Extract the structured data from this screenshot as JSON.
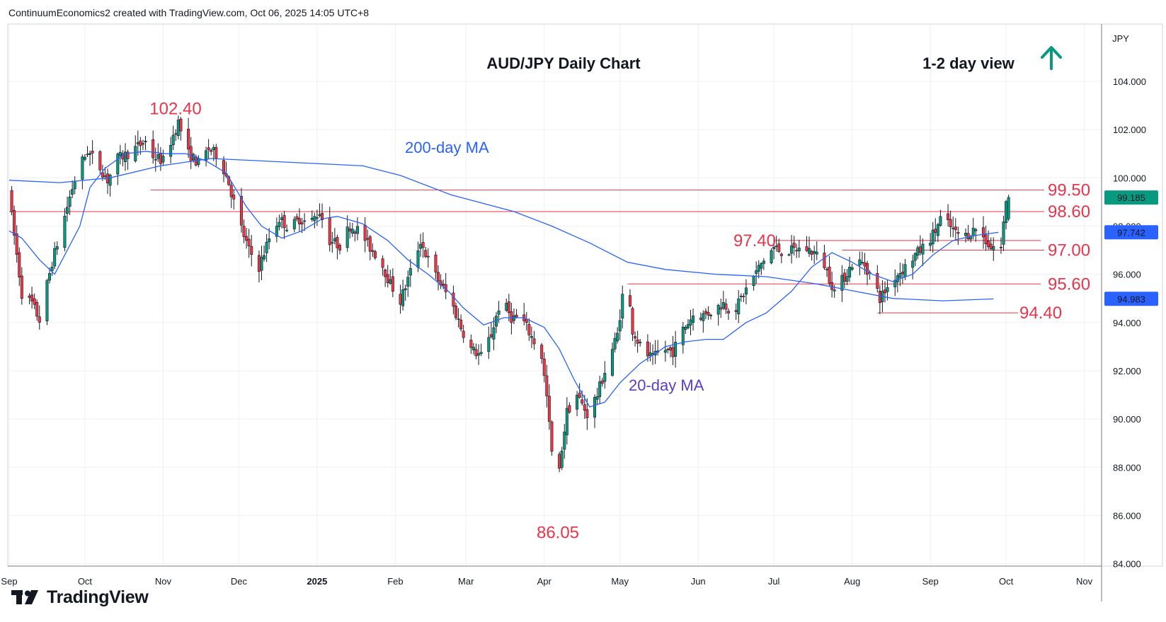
{
  "header": {
    "credit": "ContinuumEconomics2 created with TradingView.com, Oct 06, 2025 14:05 UTC+8"
  },
  "brand": {
    "name": "TradingView"
  },
  "chart_data": {
    "type": "candlestick",
    "title": "AUD/JPY Daily Chart",
    "view_label": "1-2 day view",
    "view_direction": "up",
    "currency": "JPY",
    "y_ticks": [
      "104.000",
      "102.000",
      "100.000",
      "98.000",
      "96.000",
      "94.000",
      "92.000",
      "90.000",
      "88.000",
      "86.000",
      "84.000"
    ],
    "y_tick_values": [
      104,
      102,
      100,
      98,
      96,
      94,
      92,
      90,
      88,
      86,
      84
    ],
    "ylim": [
      83.9,
      106.2
    ],
    "x_ticks": [
      "Sep",
      "Oct",
      "Nov",
      "Dec",
      "2025",
      "Feb",
      "Mar",
      "Apr",
      "May",
      "Jun",
      "Jul",
      "Aug",
      "Sep",
      "Oct",
      "Nov"
    ],
    "x_tick_days": [
      0,
      30,
      61,
      91,
      122,
      153,
      181,
      212,
      242,
      273,
      303,
      334,
      365,
      395,
      426
    ],
    "x_range_days": [
      0,
      432
    ],
    "x_origin": "2024-09-01",
    "price_badges": [
      {
        "value": 99.185,
        "label": "99.185",
        "color": "#089981"
      },
      {
        "value": 97.742,
        "label": "97.742",
        "color": "#2962ff"
      },
      {
        "value": 94.983,
        "label": "94.983",
        "color": "#2962ff"
      }
    ],
    "levels": [
      {
        "label": "102.40",
        "value": 102.4,
        "line": false
      },
      {
        "label": "99.50",
        "value": 99.5,
        "line": true,
        "from_day": 56
      },
      {
        "label": "98.60",
        "value": 98.6,
        "line": true,
        "from_day": 0
      },
      {
        "label": "97.40",
        "value": 97.4,
        "line": true,
        "from_day": 303
      },
      {
        "label": "97.00",
        "value": 97.0,
        "line": true,
        "from_day": 330
      },
      {
        "label": "95.60",
        "value": 95.6,
        "line": true,
        "from_day": 245
      },
      {
        "label": "94.40",
        "value": 94.4,
        "line": true,
        "from_day": 344
      },
      {
        "label": "86.05",
        "value": 86.05,
        "line": false
      }
    ],
    "annotations": [
      {
        "text": "200-day MA",
        "color": "#2962ff"
      },
      {
        "text": "20-day MA",
        "color": "#5b3ec8"
      }
    ],
    "series": [
      {
        "name": "200-day MA",
        "color": "#2962ff",
        "points": [
          [
            0,
            99.9
          ],
          [
            20,
            99.8
          ],
          [
            40,
            100.0
          ],
          [
            60,
            100.5
          ],
          [
            80,
            100.8
          ],
          [
            100,
            100.7
          ],
          [
            120,
            100.6
          ],
          [
            140,
            100.5
          ],
          [
            155,
            100.1
          ],
          [
            175,
            99.3
          ],
          [
            200,
            98.6
          ],
          [
            215,
            98.0
          ],
          [
            230,
            97.3
          ],
          [
            245,
            96.5
          ],
          [
            260,
            96.2
          ],
          [
            280,
            96.0
          ],
          [
            300,
            95.9
          ],
          [
            320,
            95.6
          ],
          [
            335,
            95.3
          ],
          [
            350,
            95.0
          ],
          [
            370,
            94.9
          ],
          [
            390,
            94.98
          ]
        ]
      },
      {
        "name": "20-day MA",
        "color": "#2962ff",
        "points": [
          [
            0,
            97.8
          ],
          [
            5,
            97.5
          ],
          [
            12,
            96.6
          ],
          [
            18,
            96.0
          ],
          [
            22,
            96.8
          ],
          [
            28,
            98.0
          ],
          [
            32,
            99.6
          ],
          [
            38,
            100.4
          ],
          [
            46,
            101.0
          ],
          [
            54,
            101.1
          ],
          [
            62,
            101.0
          ],
          [
            70,
            101.0
          ],
          [
            78,
            100.7
          ],
          [
            86,
            100.2
          ],
          [
            94,
            98.8
          ],
          [
            100,
            98.0
          ],
          [
            108,
            97.5
          ],
          [
            116,
            97.8
          ],
          [
            124,
            98.3
          ],
          [
            130,
            98.4
          ],
          [
            140,
            98.1
          ],
          [
            150,
            97.4
          ],
          [
            158,
            96.6
          ],
          [
            166,
            96.0
          ],
          [
            174,
            95.3
          ],
          [
            180,
            94.6
          ],
          [
            188,
            93.9
          ],
          [
            196,
            94.2
          ],
          [
            204,
            94.2
          ],
          [
            212,
            93.8
          ],
          [
            218,
            92.9
          ],
          [
            224,
            91.6
          ],
          [
            230,
            90.5
          ],
          [
            236,
            90.7
          ],
          [
            242,
            91.5
          ],
          [
            250,
            92.3
          ],
          [
            260,
            93.0
          ],
          [
            268,
            93.2
          ],
          [
            276,
            93.3
          ],
          [
            283,
            93.3
          ],
          [
            292,
            94.0
          ],
          [
            300,
            94.4
          ],
          [
            310,
            95.3
          ],
          [
            318,
            96.3
          ],
          [
            326,
            96.9
          ],
          [
            334,
            96.5
          ],
          [
            342,
            96.0
          ],
          [
            350,
            95.7
          ],
          [
            358,
            96.0
          ],
          [
            366,
            96.8
          ],
          [
            374,
            97.4
          ],
          [
            382,
            97.6
          ],
          [
            392,
            97.74
          ]
        ]
      }
    ],
    "price_path": [
      [
        0,
        99.6
      ],
      [
        2,
        98.4
      ],
      [
        6,
        95.2
      ],
      [
        10,
        94.8
      ],
      [
        13,
        94.1
      ],
      [
        15,
        95.1
      ],
      [
        18,
        96.5
      ],
      [
        22,
        98.0
      ],
      [
        25,
        99.2
      ],
      [
        28,
        100.3
      ],
      [
        32,
        101.1
      ],
      [
        36,
        100.6
      ],
      [
        40,
        99.9
      ],
      [
        44,
        100.8
      ],
      [
        48,
        101.0
      ],
      [
        52,
        101.3
      ],
      [
        55,
        101.5
      ],
      [
        58,
        100.9
      ],
      [
        62,
        100.7
      ],
      [
        65,
        101.5
      ],
      [
        68,
        102.3
      ],
      [
        72,
        101.0
      ],
      [
        76,
        100.6
      ],
      [
        80,
        101.2
      ],
      [
        84,
        100.9
      ],
      [
        88,
        99.8
      ],
      [
        92,
        98.2
      ],
      [
        96,
        97.0
      ],
      [
        100,
        96.3
      ],
      [
        104,
        97.5
      ],
      [
        108,
        98.3
      ],
      [
        112,
        97.9
      ],
      [
        116,
        98.3
      ],
      [
        120,
        98.1
      ],
      [
        124,
        98.6
      ],
      [
        128,
        97.4
      ],
      [
        132,
        97.2
      ],
      [
        136,
        98.0
      ],
      [
        140,
        97.8
      ],
      [
        144,
        97.1
      ],
      [
        148,
        96.6
      ],
      [
        152,
        95.6
      ],
      [
        156,
        94.9
      ],
      [
        160,
        96.1
      ],
      [
        164,
        97.4
      ],
      [
        168,
        96.3
      ],
      [
        172,
        95.6
      ],
      [
        176,
        94.9
      ],
      [
        180,
        93.8
      ],
      [
        184,
        92.9
      ],
      [
        188,
        92.6
      ],
      [
        192,
        93.5
      ],
      [
        196,
        95.0
      ],
      [
        200,
        94.2
      ],
      [
        204,
        94.2
      ],
      [
        208,
        93.4
      ],
      [
        212,
        92.6
      ],
      [
        214,
        90.9
      ],
      [
        216,
        88.6
      ],
      [
        218,
        86.8
      ],
      [
        220,
        88.8
      ],
      [
        222,
        90.3
      ],
      [
        226,
        91.0
      ],
      [
        230,
        90.2
      ],
      [
        234,
        91.0
      ],
      [
        238,
        92.3
      ],
      [
        242,
        93.5
      ],
      [
        244,
        95.1
      ],
      [
        246,
        95.5
      ],
      [
        248,
        93.7
      ],
      [
        252,
        92.8
      ],
      [
        256,
        92.5
      ],
      [
        260,
        92.9
      ],
      [
        264,
        92.8
      ],
      [
        268,
        93.7
      ],
      [
        272,
        94.3
      ],
      [
        276,
        94.3
      ],
      [
        280,
        94.5
      ],
      [
        284,
        94.8
      ],
      [
        288,
        94.4
      ],
      [
        292,
        95.2
      ],
      [
        296,
        95.9
      ],
      [
        300,
        96.6
      ],
      [
        304,
        97.1
      ],
      [
        308,
        96.9
      ],
      [
        312,
        97.0
      ],
      [
        316,
        97.1
      ],
      [
        320,
        96.9
      ],
      [
        324,
        96.4
      ],
      [
        328,
        95.3
      ],
      [
        332,
        95.9
      ],
      [
        336,
        96.6
      ],
      [
        340,
        96.4
      ],
      [
        344,
        95.6
      ],
      [
        346,
        95.0
      ],
      [
        348,
        95.3
      ],
      [
        352,
        95.9
      ],
      [
        356,
        96.3
      ],
      [
        360,
        96.8
      ],
      [
        364,
        97.2
      ],
      [
        368,
        97.8
      ],
      [
        370,
        98.3
      ],
      [
        372,
        98.2
      ],
      [
        376,
        97.7
      ],
      [
        380,
        97.6
      ],
      [
        384,
        97.9
      ],
      [
        388,
        97.4
      ],
      [
        390,
        97.1
      ],
      [
        392,
        97.2
      ],
      [
        394,
        97.1
      ],
      [
        396,
        99.1
      ]
    ],
    "last_candle": {
      "day": 396,
      "open": 98.3,
      "high": 99.3,
      "low": 98.2,
      "close": 99.185
    }
  }
}
